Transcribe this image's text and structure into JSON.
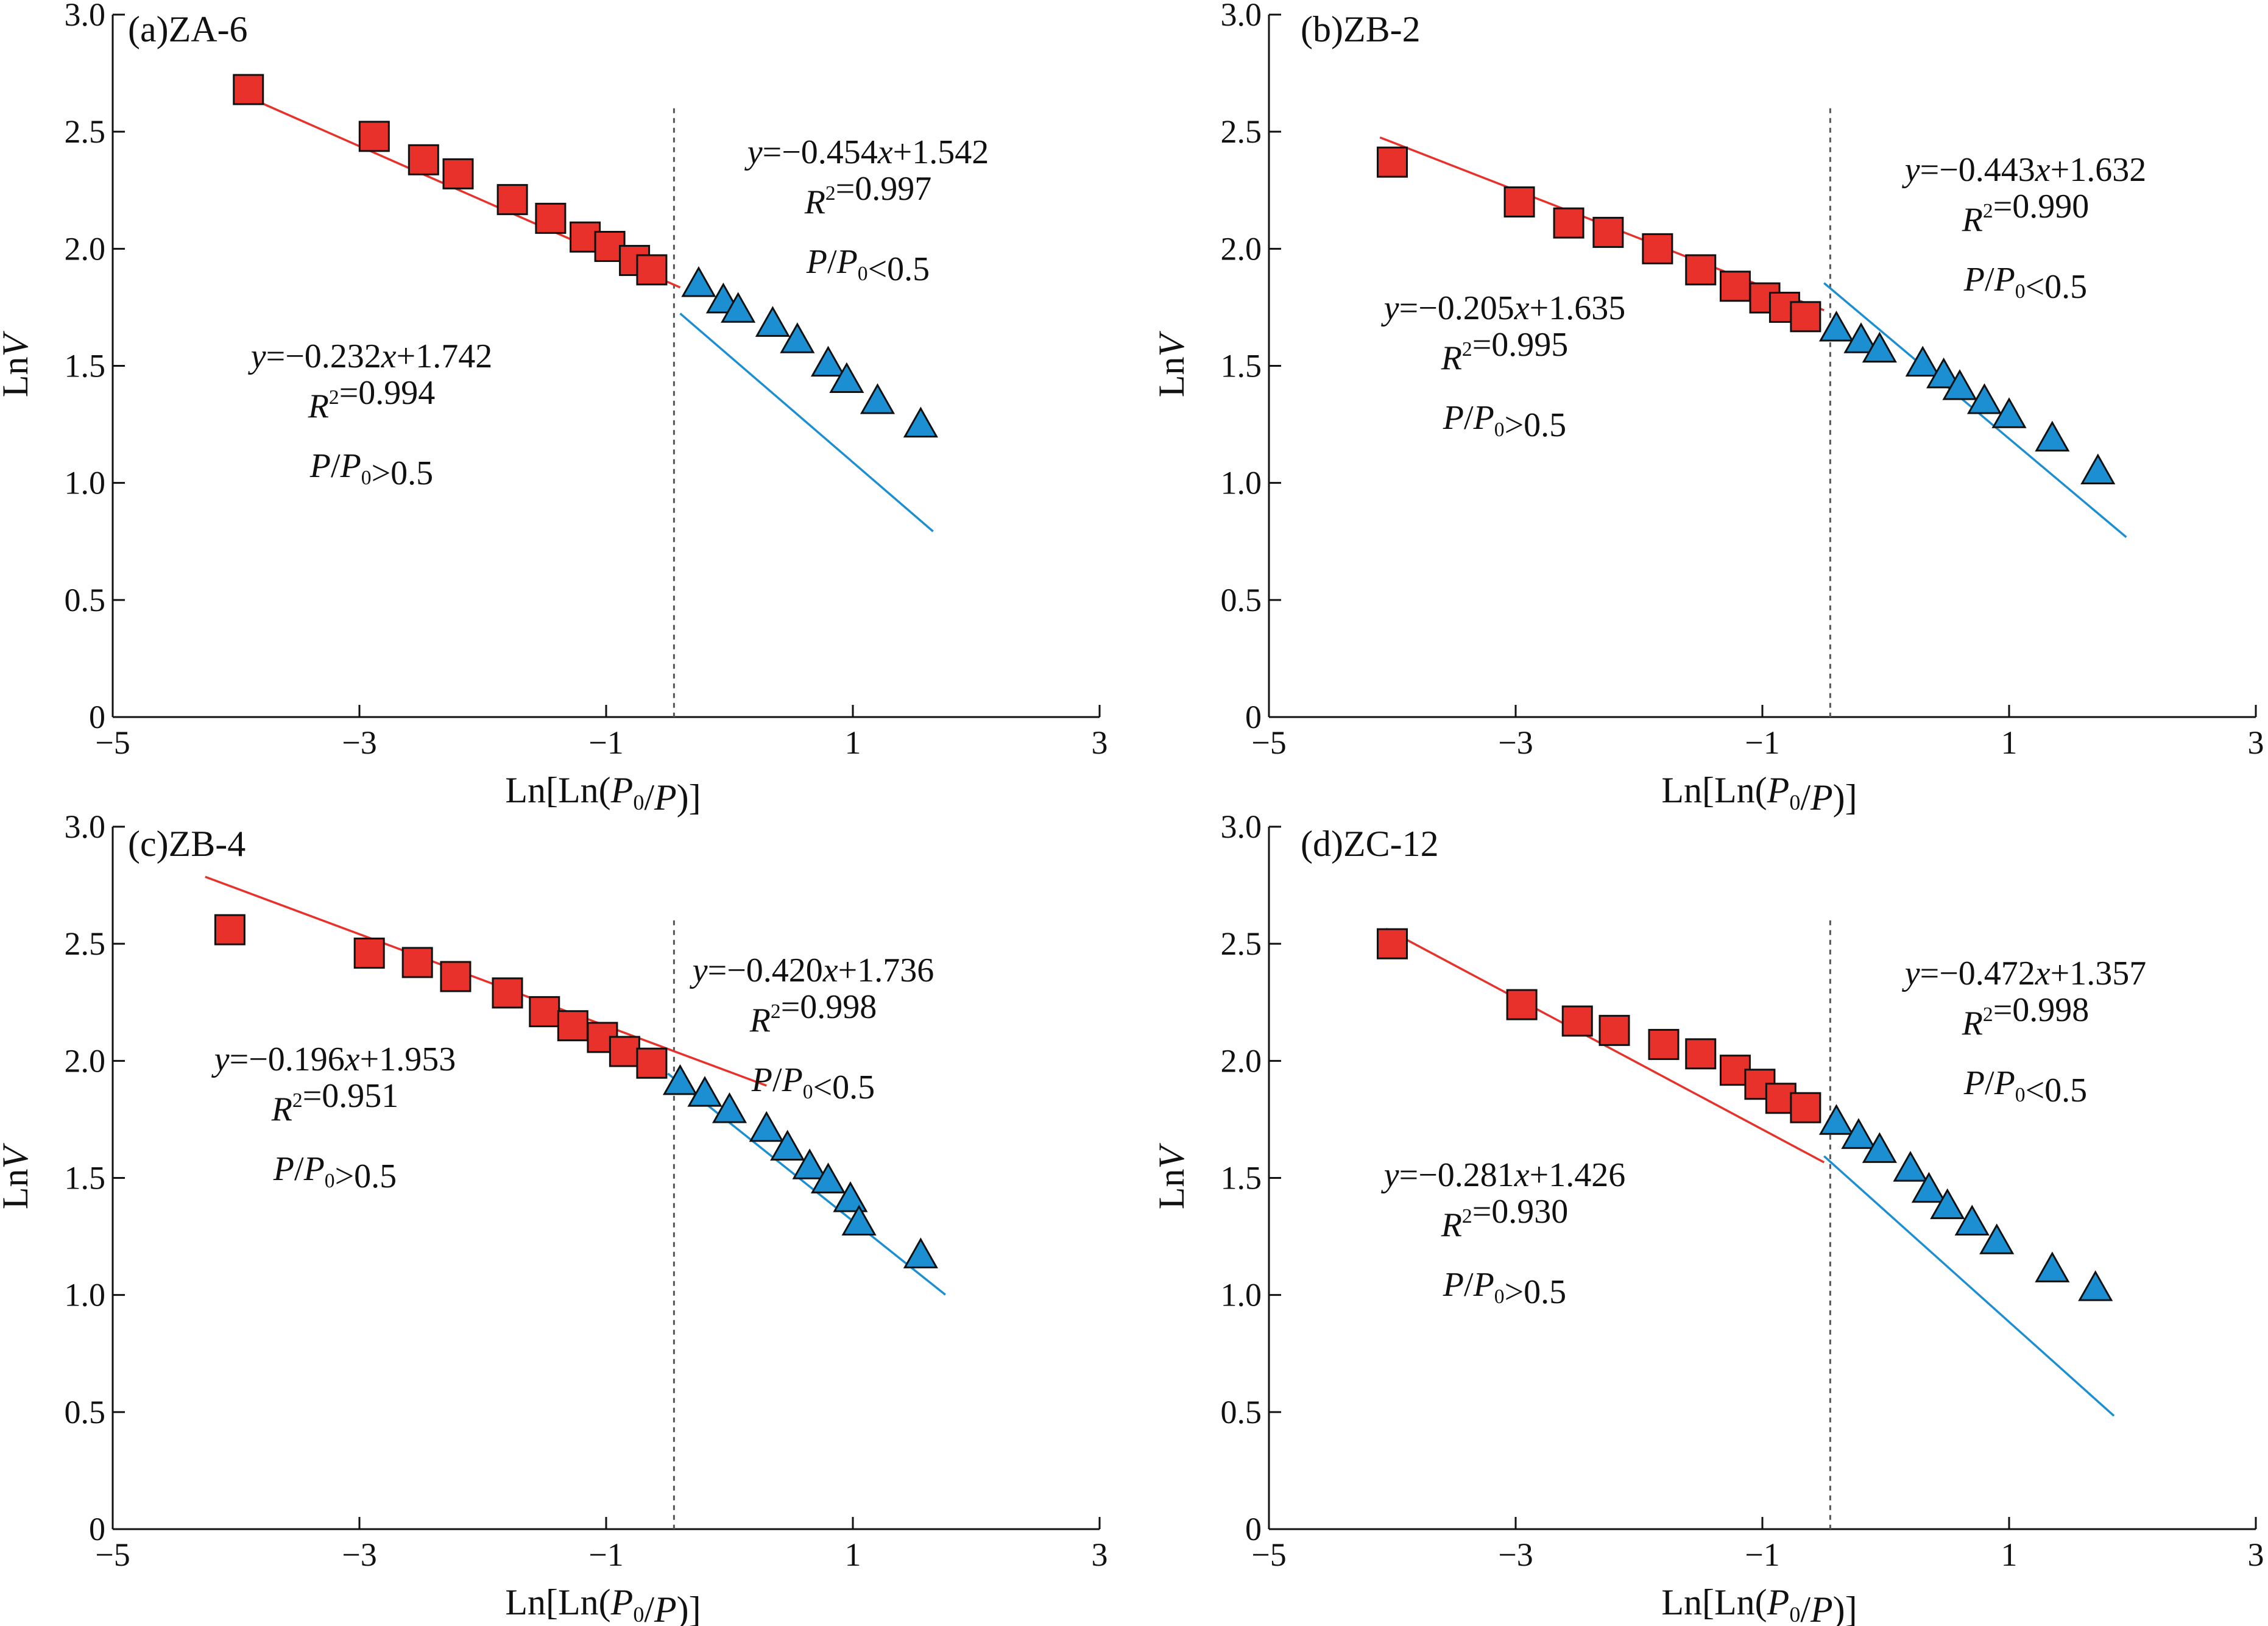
{
  "chart_data": [
    {
      "type": "scatter",
      "panel_label": "(a)ZA-6",
      "xlabel": "Ln[Ln(P0/P)]",
      "ylabel": "LnV",
      "xlim": [
        -5,
        3
      ],
      "ylim": [
        0,
        3.0
      ],
      "x_ticks": [
        "−5",
        "−3",
        "−1",
        "1",
        "3"
      ],
      "y_ticks": [
        "0",
        "0.5",
        "1.0",
        "1.5",
        "2.0",
        "2.5",
        "3.0"
      ],
      "divider_x": -0.45,
      "series": [
        {
          "marker": "square",
          "color": "#e8312a",
          "x": [
            -3.9,
            -2.88,
            -2.48,
            -2.2,
            -1.76,
            -1.45,
            -1.17,
            -0.97,
            -0.77,
            -0.63
          ],
          "y": [
            2.68,
            2.48,
            2.38,
            2.32,
            2.21,
            2.13,
            2.05,
            2.01,
            1.95,
            1.91
          ]
        },
        {
          "marker": "triangle",
          "color": "#1b8fd2",
          "x": [
            -0.25,
            -0.05,
            0.07,
            0.35,
            0.55,
            0.8,
            0.95,
            1.2,
            1.55
          ],
          "y": [
            1.85,
            1.78,
            1.74,
            1.68,
            1.61,
            1.51,
            1.44,
            1.35,
            1.25
          ]
        }
      ],
      "fits": [
        {
          "color": "#e8312a",
          "slope": -0.232,
          "intercept": 1.742,
          "x_range": [
            -3.8,
            -0.4
          ],
          "equation": "y=−0.232x+1.742",
          "r2": "0.994",
          "condition": "P/P0>0.5"
        },
        {
          "color": "#1b8fd2",
          "slope": -0.454,
          "intercept": 1.542,
          "x_range": [
            -0.4,
            1.65
          ],
          "equation": "y=−0.454x+1.542",
          "r2": "0.997",
          "condition": "P/P0<0.5"
        }
      ]
    },
    {
      "type": "scatter",
      "panel_label": "(b)ZB-2",
      "xlabel": "Ln[Ln(P0/P)]",
      "ylabel": "LnV",
      "xlim": [
        -5,
        3
      ],
      "ylim": [
        0,
        3.0
      ],
      "x_ticks": [
        "−5",
        "−3",
        "−1",
        "1",
        "3"
      ],
      "y_ticks": [
        "0",
        "0.5",
        "1.0",
        "1.5",
        "2.0",
        "2.5",
        "3.0"
      ],
      "divider_x": -0.45,
      "series": [
        {
          "marker": "square",
          "color": "#e8312a",
          "x": [
            -4.0,
            -2.97,
            -2.57,
            -2.25,
            -1.85,
            -1.5,
            -1.22,
            -0.98,
            -0.82,
            -0.65
          ],
          "y": [
            2.37,
            2.2,
            2.11,
            2.07,
            2.0,
            1.91,
            1.84,
            1.79,
            1.75,
            1.71
          ]
        },
        {
          "marker": "triangle",
          "color": "#1b8fd2",
          "x": [
            -0.4,
            -0.2,
            -0.05,
            0.3,
            0.47,
            0.6,
            0.8,
            1.0,
            1.35,
            1.72
          ],
          "y": [
            1.66,
            1.61,
            1.57,
            1.51,
            1.46,
            1.41,
            1.35,
            1.29,
            1.19,
            1.05
          ]
        }
      ],
      "fits": [
        {
          "color": "#e8312a",
          "slope": -0.205,
          "intercept": 1.635,
          "x_range": [
            -4.1,
            -0.5
          ],
          "equation": "y=−0.205x+1.635",
          "r2": "0.995",
          "condition": "P/P0>0.5"
        },
        {
          "color": "#1b8fd2",
          "slope": -0.443,
          "intercept": 1.632,
          "x_range": [
            -0.5,
            1.95
          ],
          "equation": "y=−0.443x+1.632",
          "r2": "0.990",
          "condition": "P/P0<0.5"
        }
      ]
    },
    {
      "type": "scatter",
      "panel_label": "(c)ZB-4",
      "xlabel": "Ln[Ln(P0/P)]",
      "ylabel": "LnV",
      "xlim": [
        -5,
        3
      ],
      "ylim": [
        0,
        3.0
      ],
      "x_ticks": [
        "−5",
        "−3",
        "−1",
        "1",
        "3"
      ],
      "y_ticks": [
        "0",
        "0.5",
        "1.0",
        "1.5",
        "2.0",
        "2.5",
        "3.0"
      ],
      "divider_x": -0.45,
      "series": [
        {
          "marker": "square",
          "color": "#e8312a",
          "x": [
            -4.05,
            -2.92,
            -2.53,
            -2.22,
            -1.8,
            -1.5,
            -1.27,
            -1.03,
            -0.85,
            -0.63
          ],
          "y": [
            2.56,
            2.46,
            2.42,
            2.36,
            2.29,
            2.21,
            2.15,
            2.1,
            2.04,
            1.99
          ]
        },
        {
          "marker": "triangle",
          "color": "#1b8fd2",
          "x": [
            -0.4,
            -0.2,
            0.0,
            0.3,
            0.47,
            0.65,
            0.8,
            0.98,
            1.05,
            1.55
          ],
          "y": [
            1.91,
            1.86,
            1.79,
            1.71,
            1.63,
            1.55,
            1.49,
            1.41,
            1.31,
            1.17
          ]
        }
      ],
      "fits": [
        {
          "color": "#e8312a",
          "slope": -0.196,
          "intercept": 1.953,
          "x_range": [
            -4.25,
            0.3
          ],
          "equation": "y=−0.196x+1.953",
          "r2": "0.951",
          "condition": "P/P0>0.5"
        },
        {
          "color": "#1b8fd2",
          "slope": -0.42,
          "intercept": 1.736,
          "x_range": [
            -0.5,
            1.75
          ],
          "equation": "y=−0.420x+1.736",
          "r2": "0.998",
          "condition": "P/P0<0.5"
        }
      ]
    },
    {
      "type": "scatter",
      "panel_label": "(d)ZC-12",
      "xlabel": "Ln[Ln(P0/P)]",
      "ylabel": "LnV",
      "xlim": [
        -5,
        3
      ],
      "ylim": [
        0,
        3.0
      ],
      "x_ticks": [
        "−5",
        "−3",
        "−1",
        "1",
        "3"
      ],
      "y_ticks": [
        "0",
        "0.5",
        "1.0",
        "1.5",
        "2.0",
        "2.5",
        "3.0"
      ],
      "divider_x": -0.45,
      "series": [
        {
          "marker": "square",
          "color": "#e8312a",
          "x": [
            -4.0,
            -2.95,
            -2.5,
            -2.2,
            -1.8,
            -1.5,
            -1.22,
            -1.02,
            -0.85,
            -0.65
          ],
          "y": [
            2.5,
            2.24,
            2.17,
            2.13,
            2.07,
            2.03,
            1.96,
            1.9,
            1.84,
            1.8
          ]
        },
        {
          "marker": "triangle",
          "color": "#1b8fd2",
          "x": [
            -0.4,
            -0.22,
            -0.05,
            0.2,
            0.35,
            0.5,
            0.7,
            0.9,
            1.35,
            1.7
          ],
          "y": [
            1.74,
            1.68,
            1.62,
            1.54,
            1.45,
            1.38,
            1.31,
            1.23,
            1.11,
            1.03
          ]
        }
      ],
      "fits": [
        {
          "color": "#e8312a",
          "slope": -0.281,
          "intercept": 1.426,
          "x_range": [
            -4.05,
            -0.5
          ],
          "equation": "y=−0.281x+1.426",
          "r2": "0.930",
          "condition": "P/P0>0.5"
        },
        {
          "color": "#1b8fd2",
          "slope": -0.472,
          "intercept": 1.357,
          "x_range": [
            -0.5,
            1.85
          ],
          "equation": "y=−0.472x+1.357",
          "r2": "0.998",
          "condition": "P/P0<0.5"
        }
      ]
    }
  ]
}
